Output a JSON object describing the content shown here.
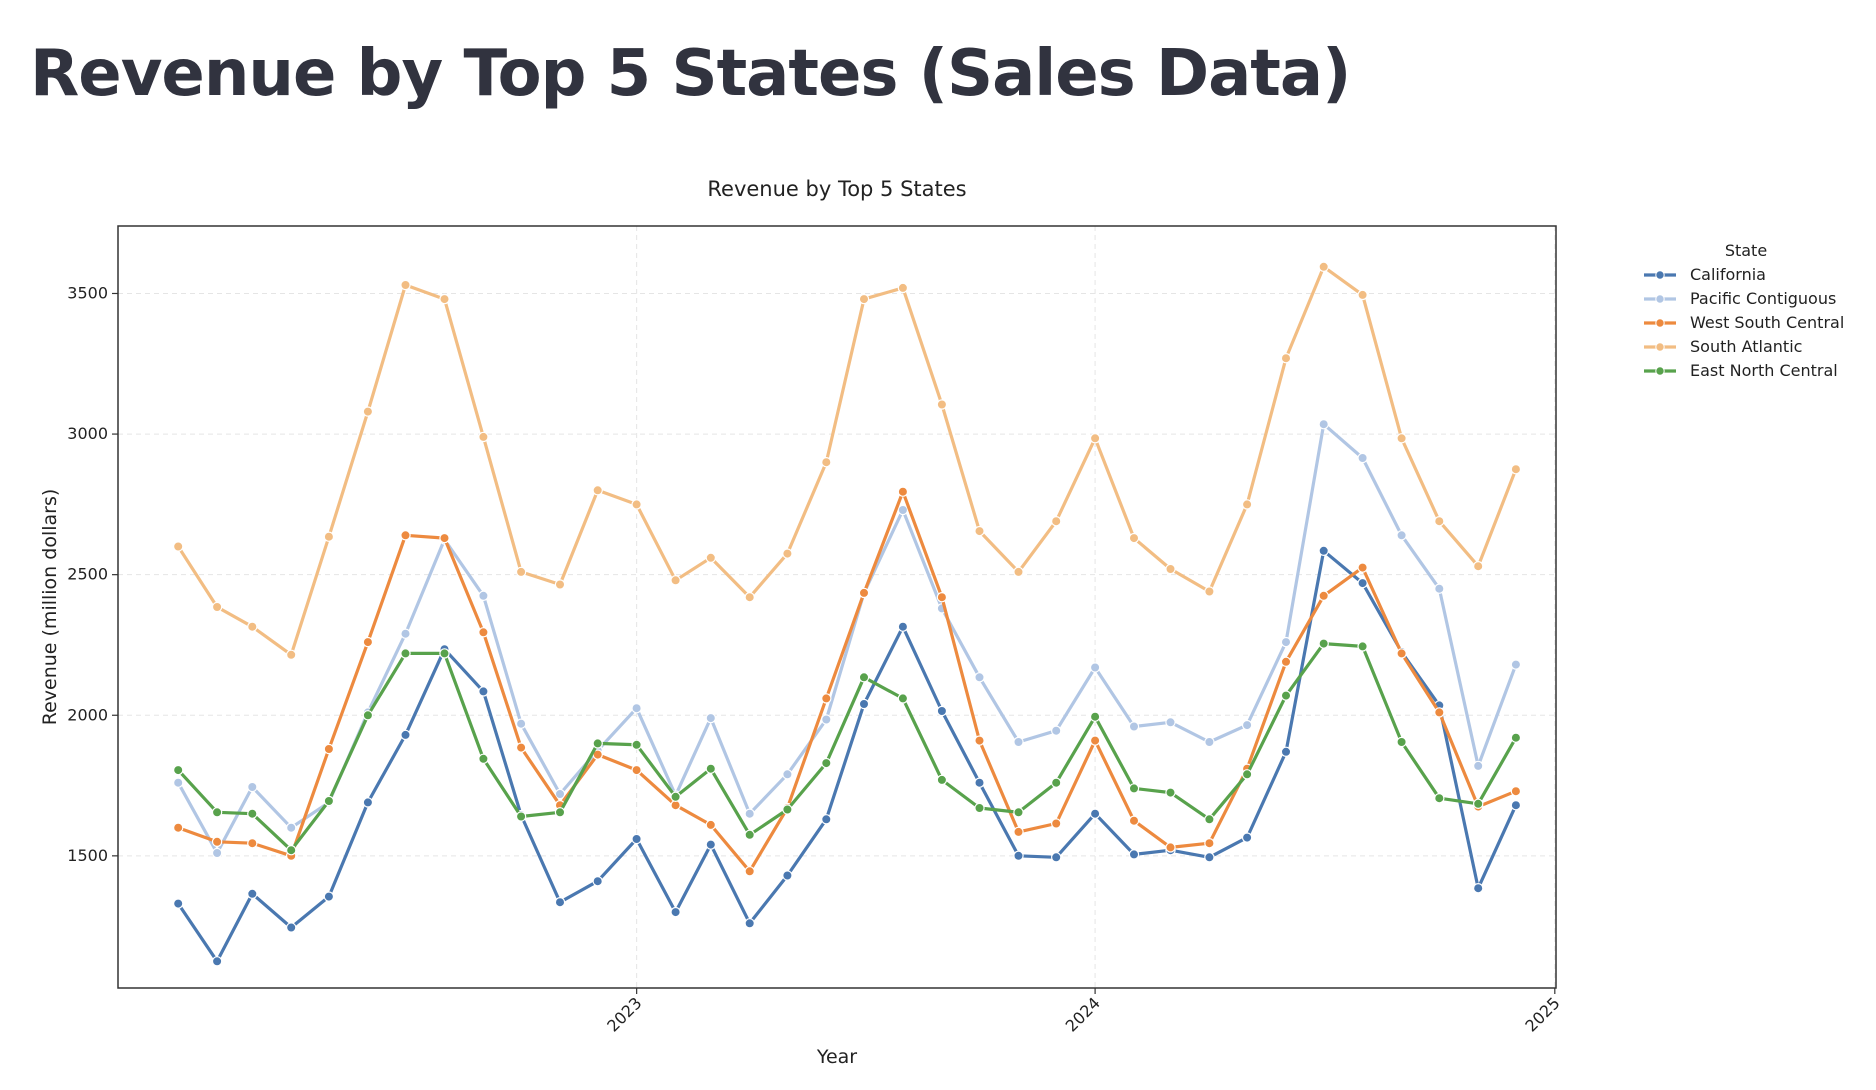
{
  "page": {
    "title": "Revenue by Top 5 States (Sales Data)"
  },
  "chart_data": {
    "type": "line",
    "title": "Revenue by Top 5 States",
    "xlabel": "Year",
    "ylabel": "Revenue (million dollars)",
    "x": [
      "2022-01",
      "2022-02",
      "2022-03",
      "2022-04",
      "2022-05",
      "2022-06",
      "2022-07",
      "2022-08",
      "2022-09",
      "2022-10",
      "2022-11",
      "2022-12",
      "2023-01",
      "2023-02",
      "2023-03",
      "2023-04",
      "2023-05",
      "2023-06",
      "2023-07",
      "2023-08",
      "2023-09",
      "2023-10",
      "2023-11",
      "2023-12",
      "2024-01",
      "2024-02",
      "2024-03",
      "2024-04",
      "2024-05",
      "2024-06",
      "2024-07",
      "2024-08",
      "2024-09",
      "2024-10",
      "2024-11",
      "2024-12"
    ],
    "xticks": [
      "2023",
      "2024",
      "2025"
    ],
    "yticks": [
      1500,
      2000,
      2500,
      3000,
      3500
    ],
    "ylim": [
      1030,
      3740
    ],
    "grid": true,
    "legend": {
      "title": "State",
      "position": "outside-right"
    },
    "series": [
      {
        "name": "California",
        "color": "#4a78b0",
        "values": [
          1330,
          1125,
          1365,
          1245,
          1355,
          1690,
          1930,
          2235,
          2085,
          1645,
          1335,
          1410,
          1560,
          1300,
          1540,
          1260,
          1430,
          1630,
          2040,
          2315,
          2015,
          1760,
          1500,
          1495,
          1650,
          1505,
          1520,
          1495,
          1565,
          1870,
          2585,
          2470,
          2225,
          2035,
          1385,
          1680
        ]
      },
      {
        "name": "Pacific Contiguous",
        "color": "#b1c6e4",
        "values": [
          1760,
          1510,
          1745,
          1600,
          1690,
          2010,
          2290,
          2625,
          2425,
          1970,
          1720,
          1875,
          2025,
          1715,
          1990,
          1650,
          1790,
          1985,
          2435,
          2730,
          2380,
          2135,
          1905,
          1945,
          2170,
          1960,
          1975,
          1905,
          1965,
          2260,
          3035,
          2915,
          2640,
          2450,
          1820,
          2180
        ]
      },
      {
        "name": "West South Central",
        "color": "#ed8a3f",
        "values": [
          1600,
          1550,
          1545,
          1500,
          1880,
          2260,
          2640,
          2630,
          2295,
          1885,
          1680,
          1860,
          1805,
          1680,
          1610,
          1445,
          1670,
          2060,
          2435,
          2795,
          2420,
          1910,
          1585,
          1615,
          1910,
          1625,
          1530,
          1545,
          1810,
          2190,
          2425,
          2525,
          2220,
          2010,
          1675,
          1730
        ]
      },
      {
        "name": "South Atlantic",
        "color": "#f2bd83",
        "values": [
          2600,
          2385,
          2315,
          2215,
          2635,
          3080,
          3530,
          3480,
          2990,
          2510,
          2465,
          2800,
          2750,
          2480,
          2560,
          2420,
          2575,
          2900,
          3480,
          3520,
          3105,
          2655,
          2510,
          2690,
          2985,
          2630,
          2520,
          2440,
          2750,
          3270,
          3595,
          3495,
          2985,
          2690,
          2530,
          2875
        ]
      },
      {
        "name": "East North Central",
        "color": "#58a24c",
        "values": [
          1805,
          1655,
          1650,
          1520,
          1695,
          2000,
          2220,
          2220,
          1845,
          1640,
          1655,
          1900,
          1895,
          1710,
          1810,
          1575,
          1665,
          1830,
          2135,
          2060,
          1770,
          1670,
          1655,
          1760,
          1995,
          1740,
          1725,
          1630,
          1790,
          2070,
          2255,
          2245,
          1905,
          1705,
          1685,
          1920
        ]
      }
    ]
  }
}
